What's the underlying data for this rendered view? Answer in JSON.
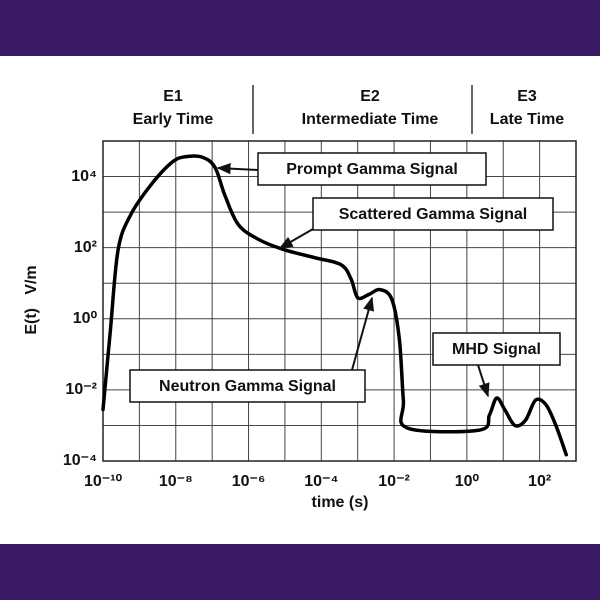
{
  "chart_data": {
    "type": "line",
    "regions": [
      {
        "label": "E1",
        "name": "Early Time"
      },
      {
        "label": "E2",
        "name": "Intermediate Time"
      },
      {
        "label": "E3",
        "name": "Late Time"
      }
    ],
    "xlabel": "time (s)",
    "ylabel": "E(t)   V/m",
    "log_x": true,
    "log_y": true,
    "grid": true,
    "xlim": [
      1e-10,
      1000.0
    ],
    "ylim": [
      0.0001,
      100000.0
    ],
    "xticks": [
      {
        "value": 1e-10,
        "label": "10⁻¹⁰"
      },
      {
        "value": 1e-08,
        "label": "10⁻⁸"
      },
      {
        "value": 1e-06,
        "label": "10⁻⁶"
      },
      {
        "value": 0.0001,
        "label": "10⁻⁴"
      },
      {
        "value": 0.01,
        "label": "10⁻²"
      },
      {
        "value": 1,
        "label": "10⁰"
      },
      {
        "value": 100,
        "label": "10²"
      }
    ],
    "xminor": [
      1e-09,
      1e-07,
      1e-05,
      0.001,
      0.1,
      10,
      1000
    ],
    "yticks": [
      {
        "value": 0.0001,
        "label": "10⁻⁴"
      },
      {
        "value": 0.01,
        "label": "10⁻²"
      },
      {
        "value": 1,
        "label": "10⁰"
      },
      {
        "value": 100,
        "label": "10²"
      },
      {
        "value": 10000,
        "label": "10⁴"
      }
    ],
    "yminor": [
      0.001,
      0.1,
      10,
      1000,
      100000.0
    ],
    "x": [
      1e-10,
      1.6e-10,
      2.6e-10,
      5.8e-10,
      2.1e-09,
      7.8e-09,
      1.8e-08,
      5.4e-08,
      1.2e-07,
      2.2e-07,
      5.2e-07,
      1.9e-06,
      9.8e-06,
      6.8e-05,
      0.00035,
      0.00066,
      0.001,
      0.002,
      0.0041,
      0.0087,
      0.014,
      0.018,
      0.023,
      2.2,
      4.2,
      6.6,
      11,
      21,
      41,
      78,
      150,
      280,
      540
    ],
    "series": [
      {
        "color": "#000000",
        "values": [
          0.0028,
          0.49,
          87,
          850,
          5900,
          25000,
          36000,
          35000,
          18000,
          3100,
          450,
          170,
          87,
          52,
          33,
          13,
          3.9,
          4.8,
          6.6,
          3.5,
          0.26,
          0.0052,
          0.00085,
          0.00074,
          0.002,
          0.0059,
          0.0028,
          0.001,
          0.0014,
          0.0052,
          0.0038,
          0.001,
          0.00015
        ]
      }
    ],
    "annotations": [
      {
        "text": "Prompt Gamma Signal"
      },
      {
        "text": "Scattered Gamma Signal"
      },
      {
        "text": "Neutron Gamma Signal"
      },
      {
        "text": "MHD Signal"
      }
    ]
  }
}
